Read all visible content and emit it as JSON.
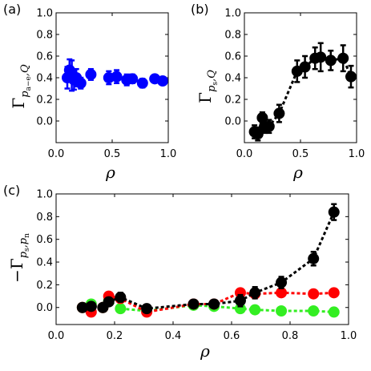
{
  "colors": {
    "blue": "#0000ff",
    "black": "#000000",
    "red": "#ff0000",
    "green": "#33ee22"
  },
  "chart_data": [
    {
      "panel": "(a)",
      "type": "scatter",
      "xlabel": "ρ",
      "ylabel": {
        "main": "Γ",
        "sub": "p",
        "subsub": "a−e",
        "suffix": ",Q"
      },
      "xlim": [
        0.0,
        1.0
      ],
      "ylim": [
        -0.2,
        1.0
      ],
      "xticks": [
        "0.0",
        "0.5",
        "1.0"
      ],
      "yticks": [
        "0.0",
        "0.2",
        "0.4",
        "0.6",
        "0.8",
        "1.0"
      ],
      "grid": false,
      "line": false,
      "series": [
        {
          "color": "blue",
          "x": [
            0.1,
            0.12,
            0.14,
            0.16,
            0.18,
            0.22,
            0.31,
            0.47,
            0.54,
            0.63,
            0.68,
            0.77,
            0.88,
            0.95
          ],
          "y": [
            0.4,
            0.47,
            0.42,
            0.38,
            0.4,
            0.35,
            0.43,
            0.4,
            0.41,
            0.38,
            0.39,
            0.35,
            0.39,
            0.37
          ],
          "err": [
            0.1,
            0.1,
            0.14,
            0.09,
            0.08,
            0.05,
            0.05,
            0.06,
            0.06,
            0.05,
            0.04,
            0.04,
            0.03,
            0.03
          ]
        }
      ]
    },
    {
      "panel": "(b)",
      "type": "scatter",
      "xlabel": "ρ",
      "ylabel": {
        "main": "Γ",
        "sub": "p",
        "subsub": "s",
        "suffix": ",Q"
      },
      "xlim": [
        0.0,
        1.0
      ],
      "ylim": [
        -0.2,
        1.0
      ],
      "xticks": [
        "0.0",
        "0.5",
        "1.0"
      ],
      "yticks": [
        "0.0",
        "0.2",
        "0.4",
        "0.6",
        "0.8",
        "1.0"
      ],
      "grid": false,
      "line": true,
      "series": [
        {
          "color": "black",
          "x": [
            0.09,
            0.12,
            0.16,
            0.18,
            0.22,
            0.31,
            0.47,
            0.54,
            0.63,
            0.68,
            0.77,
            0.88,
            0.95
          ],
          "y": [
            -0.1,
            -0.12,
            0.03,
            -0.06,
            -0.05,
            0.07,
            0.46,
            0.5,
            0.58,
            0.59,
            0.56,
            0.58,
            0.41
          ],
          "err": [
            0.06,
            0.06,
            0.05,
            0.05,
            0.06,
            0.08,
            0.1,
            0.1,
            0.1,
            0.13,
            0.09,
            0.12,
            0.1
          ]
        }
      ]
    },
    {
      "panel": "(c)",
      "type": "line",
      "xlabel": "ρ",
      "ylabel": {
        "main": "−Γ",
        "sub": "p",
        "subsub": "s",
        "suffix": ",p",
        "suffixsub": "n"
      },
      "xlim": [
        0.0,
        1.0
      ],
      "ylim": [
        -0.15,
        1.0
      ],
      "xticks": [
        "0.0",
        "0.2",
        "0.4",
        "0.6",
        "0.8",
        "1.0"
      ],
      "yticks": [
        "0.0",
        "0.2",
        "0.4",
        "0.6",
        "0.8",
        "1.0"
      ],
      "grid": false,
      "series": [
        {
          "color": "green",
          "x": [
            0.09,
            0.12,
            0.16,
            0.18,
            0.22,
            0.31,
            0.47,
            0.54,
            0.63,
            0.68,
            0.77,
            0.88,
            0.95
          ],
          "y": [
            0.0,
            0.03,
            0.0,
            0.06,
            -0.01,
            -0.03,
            0.02,
            0.01,
            -0.01,
            -0.02,
            -0.03,
            -0.03,
            -0.04
          ],
          "err": [
            0.02,
            0.02,
            0.02,
            0.02,
            0.02,
            0.02,
            0.02,
            0.02,
            0.02,
            0.02,
            0.02,
            0.02,
            0.02
          ]
        },
        {
          "color": "red",
          "x": [
            0.09,
            0.12,
            0.16,
            0.18,
            0.22,
            0.31,
            0.47,
            0.54,
            0.63,
            0.68,
            0.77,
            0.88,
            0.95
          ],
          "y": [
            0.0,
            -0.04,
            0.0,
            0.1,
            0.08,
            -0.04,
            0.03,
            0.03,
            0.13,
            0.12,
            0.13,
            0.12,
            0.13
          ],
          "err": [
            0.02,
            0.02,
            0.02,
            0.02,
            0.02,
            0.02,
            0.02,
            0.02,
            0.03,
            0.02,
            0.02,
            0.02,
            0.02
          ]
        },
        {
          "color": "black",
          "x": [
            0.09,
            0.12,
            0.16,
            0.18,
            0.22,
            0.31,
            0.47,
            0.54,
            0.63,
            0.68,
            0.77,
            0.88,
            0.95
          ],
          "y": [
            0.0,
            0.01,
            0.0,
            0.05,
            0.09,
            -0.01,
            0.03,
            0.03,
            0.06,
            0.13,
            0.22,
            0.43,
            0.84
          ],
          "err": [
            0.02,
            0.02,
            0.03,
            0.03,
            0.04,
            0.03,
            0.03,
            0.03,
            0.05,
            0.05,
            0.05,
            0.06,
            0.07
          ]
        }
      ]
    }
  ]
}
